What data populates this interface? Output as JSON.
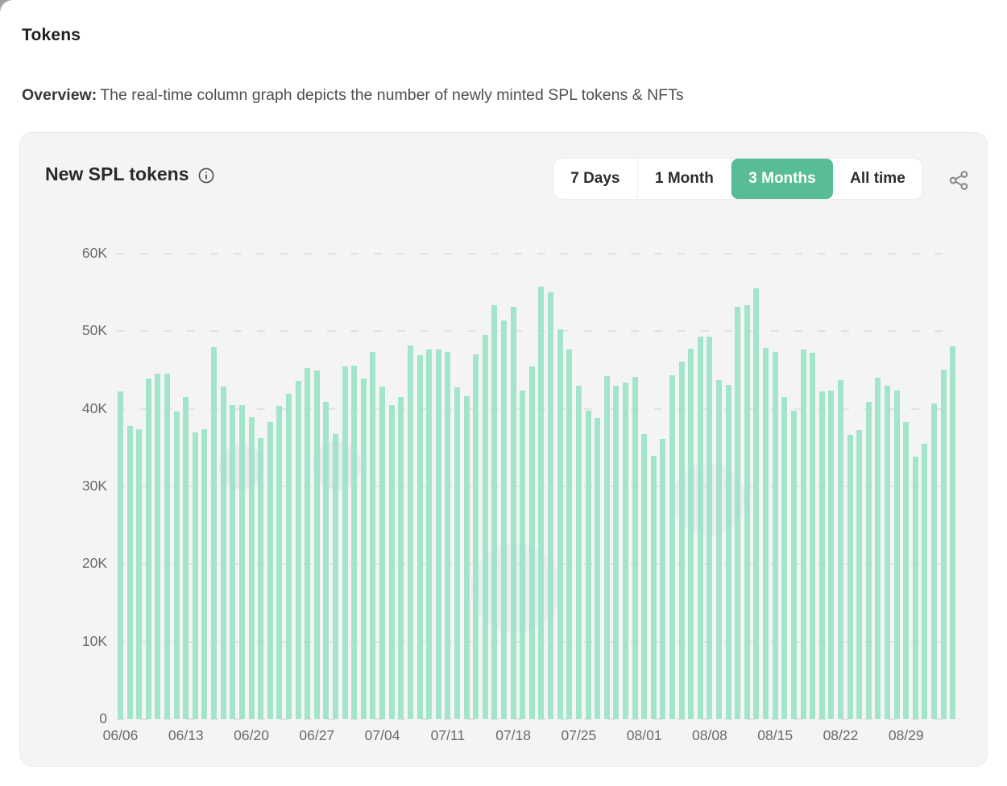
{
  "page": {
    "title": "Tokens",
    "overview_label": "Overview:",
    "overview_text": "The real-time column graph depicts the number of newly minted SPL tokens & NFTs"
  },
  "card": {
    "title": "New SPL tokens",
    "info_icon": "info-circle",
    "share_icon": "share-nodes",
    "accent_color": "#58bd94",
    "bar_color": "#9fe6cc",
    "range_buttons": [
      {
        "label": "7 Days",
        "selected": false
      },
      {
        "label": "1 Month",
        "selected": false
      },
      {
        "label": "3 Months",
        "selected": true
      },
      {
        "label": "All time",
        "selected": false
      }
    ]
  },
  "chart_data": {
    "type": "bar",
    "title": "New SPL tokens",
    "xlabel": "",
    "ylabel": "",
    "ylim": [
      0,
      60000
    ],
    "y_tick_labels": [
      "0",
      "10K",
      "20K",
      "30K",
      "40K",
      "50K",
      "60K"
    ],
    "x_tick_labels": [
      "06/06",
      "06/13",
      "06/20",
      "06/27",
      "07/04",
      "07/11",
      "07/18",
      "07/25",
      "08/01",
      "08/08",
      "08/15",
      "08/22",
      "08/29"
    ],
    "x_tick_every": 7,
    "grid": "horizontal-dashed",
    "legend": "none",
    "series": [
      {
        "name": "New SPL tokens",
        "x": [
          "06/06",
          "06/07",
          "06/08",
          "06/09",
          "06/10",
          "06/11",
          "06/12",
          "06/13",
          "06/14",
          "06/15",
          "06/16",
          "06/17",
          "06/18",
          "06/19",
          "06/20",
          "06/21",
          "06/22",
          "06/23",
          "06/24",
          "06/25",
          "06/26",
          "06/27",
          "06/28",
          "06/29",
          "06/30",
          "07/01",
          "07/02",
          "07/03",
          "07/04",
          "07/05",
          "07/06",
          "07/07",
          "07/08",
          "07/09",
          "07/10",
          "07/11",
          "07/12",
          "07/13",
          "07/14",
          "07/15",
          "07/16",
          "07/17",
          "07/18",
          "07/19",
          "07/20",
          "07/21",
          "07/22",
          "07/23",
          "07/24",
          "07/25",
          "07/26",
          "07/27",
          "07/28",
          "07/29",
          "07/30",
          "07/31",
          "08/01",
          "08/02",
          "08/03",
          "08/04",
          "08/05",
          "08/06",
          "08/07",
          "08/08",
          "08/09",
          "08/10",
          "08/11",
          "08/12",
          "08/13",
          "08/14",
          "08/15",
          "08/16",
          "08/17",
          "08/18",
          "08/19",
          "08/20",
          "08/21",
          "08/22",
          "08/23",
          "08/24",
          "08/25",
          "08/26",
          "08/27",
          "08/28",
          "08/29",
          "08/30",
          "08/31",
          "09/01",
          "09/02",
          "09/03"
        ],
        "values": [
          42300,
          37800,
          37400,
          43900,
          44500,
          44500,
          39700,
          41500,
          37000,
          37400,
          48000,
          42900,
          40500,
          40500,
          38900,
          36200,
          38300,
          40400,
          41900,
          43600,
          45300,
          44900,
          40900,
          36700,
          45500,
          45600,
          43900,
          47300,
          42900,
          40500,
          41500,
          48200,
          46900,
          47600,
          47700,
          47300,
          42800,
          41600,
          47000,
          49500,
          53400,
          51400,
          53200,
          42400,
          45500,
          55700,
          55000,
          50200,
          47600,
          43000,
          39800,
          38800,
          44200,
          43000,
          43400,
          44100,
          36700,
          33900,
          36100,
          44300,
          46100,
          47800,
          49300,
          49300,
          43700,
          43100,
          53200,
          53400,
          55500,
          47900,
          47300,
          41500,
          39800,
          47700,
          47200,
          42300,
          42400,
          43700,
          36600,
          37300,
          40900,
          44000,
          43000,
          42400,
          38300,
          33800,
          35500,
          40700,
          45100,
          48100
        ]
      }
    ]
  }
}
